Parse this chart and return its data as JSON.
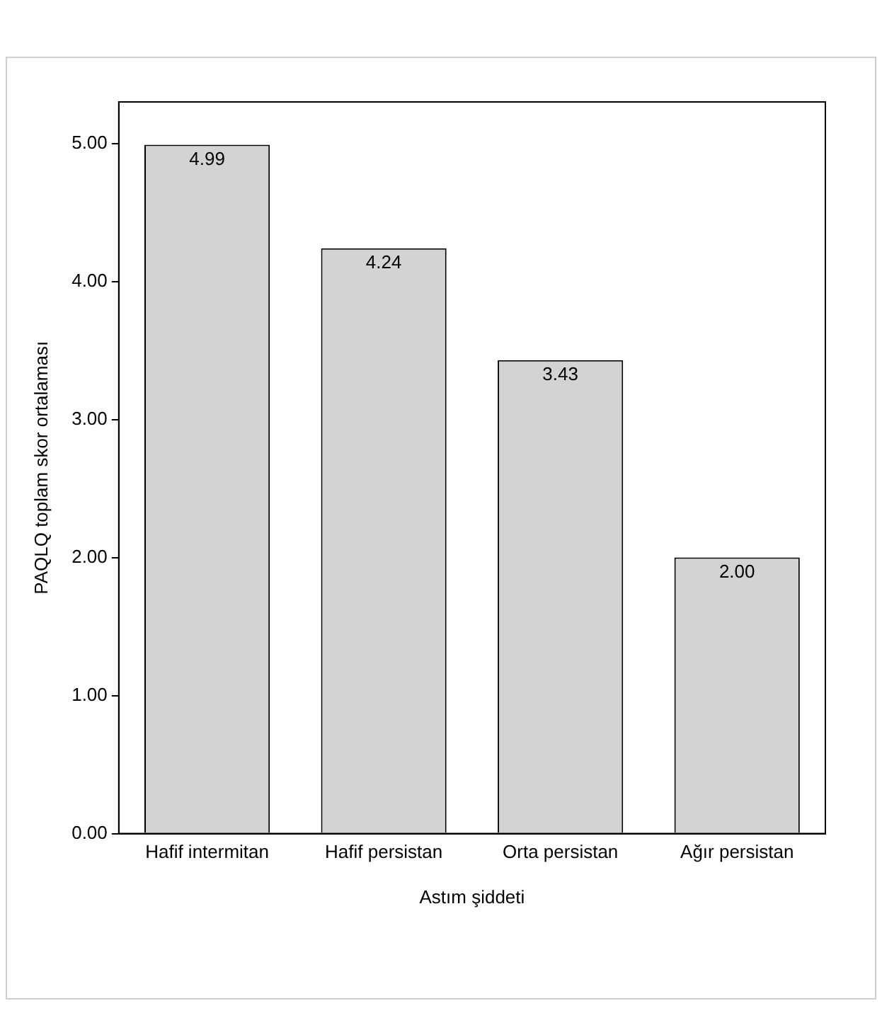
{
  "chart_data": {
    "type": "bar",
    "xlabel": "Astım şiddeti",
    "ylabel": "PAQLQ toplam skor ortalaması",
    "categories": [
      "Hafif intermitan",
      "Hafif persistan",
      "Orta persistan",
      "Ağır persistan"
    ],
    "values": [
      4.99,
      4.24,
      3.43,
      2.0
    ],
    "value_labels": [
      "4.99",
      "4.24",
      "3.43",
      "2.00"
    ],
    "color": "#d3d3d3",
    "ylim": [
      0,
      5.3
    ],
    "yticks": [
      {
        "value": 0,
        "label": "0.00"
      },
      {
        "value": 1,
        "label": "1.00"
      },
      {
        "value": 2,
        "label": "2.00"
      },
      {
        "value": 3,
        "label": "3.00"
      },
      {
        "value": 4,
        "label": "4.00"
      },
      {
        "value": 5,
        "label": "5.00"
      }
    ],
    "grid": false,
    "legend": false
  }
}
